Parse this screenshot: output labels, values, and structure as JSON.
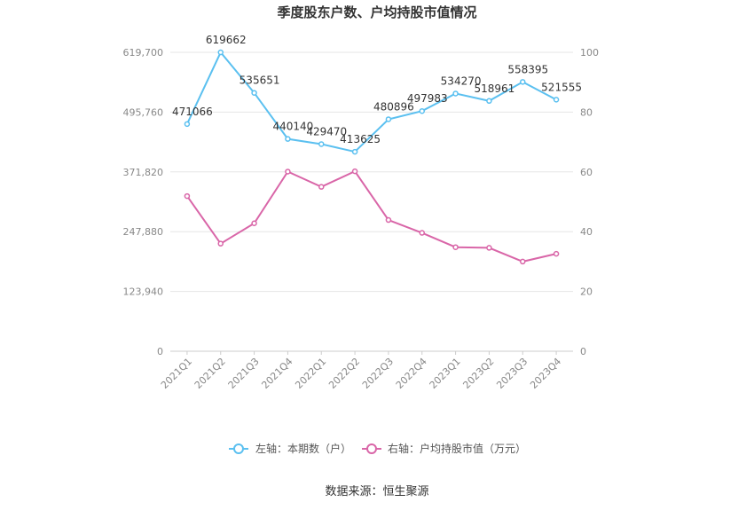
{
  "title": "季度股东户数、户均持股市值情况",
  "source": "数据来源：恒生聚源",
  "legend": {
    "left": "左轴：本期数（户）",
    "right": "右轴：户均持股市值（万元）"
  },
  "colors": {
    "left_series": "#5bc0f0",
    "right_series": "#d966a8"
  },
  "chart_data": {
    "type": "line",
    "title": "季度股东户数、户均持股市值情况",
    "categories": [
      "2021Q1",
      "2021Q2",
      "2021Q3",
      "2021Q4",
      "2022Q1",
      "2022Q2",
      "2022Q3",
      "2022Q4",
      "2023Q1",
      "2023Q2",
      "2023Q3",
      "2023Q4"
    ],
    "left_axis": {
      "ylim": [
        0,
        619700
      ],
      "ticks": [
        0,
        123940,
        247880,
        371820,
        495760,
        619700
      ],
      "tick_labels": [
        "0",
        "123,940",
        "247,880",
        "371,820",
        "495,760",
        "619,700"
      ]
    },
    "right_axis": {
      "ylim": [
        0,
        100
      ],
      "ticks": [
        0,
        20,
        40,
        60,
        80,
        100
      ],
      "tick_labels": [
        "0",
        "20",
        "40",
        "60",
        "80",
        "100"
      ]
    },
    "series": [
      {
        "name": "左轴：本期数（户）",
        "axis": "left",
        "values": [
          471066,
          619662,
          535651,
          440140,
          429470,
          413625,
          480896,
          497983,
          534270,
          518961,
          558395,
          521555
        ],
        "labels": [
          "471066",
          "619662",
          "535651",
          "440140",
          "429470",
          "413625",
          "480896",
          "497983",
          "534270",
          "518961",
          "558395",
          "521555"
        ]
      },
      {
        "name": "右轴：户均持股市值（万元）",
        "axis": "right",
        "values": [
          51.9,
          36.0,
          42.8,
          60.1,
          55.0,
          60.2,
          43.9,
          39.6,
          34.8,
          34.6,
          30.0,
          32.6
        ]
      }
    ],
    "grid": true,
    "legend_position": "bottom"
  }
}
